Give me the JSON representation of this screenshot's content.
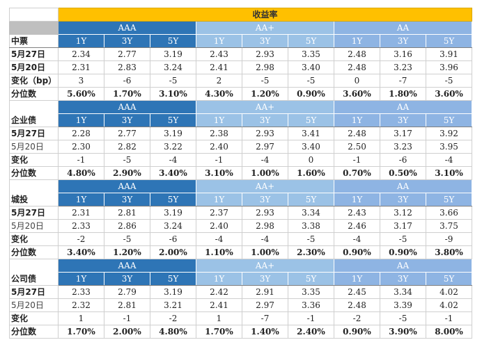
{
  "header": {
    "title": "收益率"
  },
  "grades": [
    "AAA",
    "AA+",
    "AA"
  ],
  "tenors": [
    "1Y",
    "3Y",
    "5Y"
  ],
  "colors": {
    "title_bg": "#ffc000",
    "aaa_bg": "#2e75b6",
    "aaplus_bg": "#9bc2e6",
    "aa_bg": "#8eb4e3"
  },
  "sections": [
    {
      "name": "中票",
      "rows": [
        {
          "label": "5月27日",
          "values": [
            "2.34",
            "2.77",
            "3.19",
            "2.43",
            "2.93",
            "3.35",
            "2.48",
            "3.16",
            "3.91"
          ]
        },
        {
          "label": "5月20日",
          "values": [
            "2.31",
            "2.83",
            "3.24",
            "2.41",
            "2.98",
            "3.40",
            "2.48",
            "3.23",
            "3.96"
          ]
        },
        {
          "label": "变化（bp）",
          "values": [
            "3",
            "-6",
            "-5",
            "2",
            "-5",
            "-5",
            "0",
            "-7",
            "-5"
          ]
        },
        {
          "label": "分位数",
          "values": [
            "5.60%",
            "1.70%",
            "3.10%",
            "4.30%",
            "1.20%",
            "0.90%",
            "3.60%",
            "1.80%",
            "3.60%"
          ]
        }
      ]
    },
    {
      "name": "企业债",
      "rows": [
        {
          "label": "5月27日",
          "values": [
            "2.28",
            "2.77",
            "3.19",
            "2.38",
            "2.93",
            "3.41",
            "2.48",
            "3.17",
            "3.92"
          ]
        },
        {
          "label": "5月20日",
          "values": [
            "2.30",
            "2.82",
            "3.22",
            "2.40",
            "2.97",
            "3.40",
            "2.50",
            "3.23",
            "3.95"
          ]
        },
        {
          "label": "变化",
          "values": [
            "-1",
            "-5",
            "-4",
            "-1",
            "-4",
            "0",
            "-1",
            "-6",
            "-4"
          ]
        },
        {
          "label": "分位数",
          "values": [
            "4.80%",
            "2.90%",
            "3.40%",
            "3.10%",
            "1.00%",
            "1.60%",
            "0.70%",
            "0.50%",
            "3.10%"
          ]
        }
      ]
    },
    {
      "name": "城投",
      "rows": [
        {
          "label": "5月27日",
          "values": [
            "2.31",
            "2.81",
            "3.19",
            "2.37",
            "2.93",
            "3.34",
            "2.43",
            "3.12",
            "3.66"
          ]
        },
        {
          "label": "5月20日",
          "values": [
            "2.33",
            "2.86",
            "3.24",
            "2.40",
            "2.98",
            "3.38",
            "2.46",
            "3.17",
            "3.75"
          ]
        },
        {
          "label": "变化",
          "values": [
            "-2",
            "-5",
            "-6",
            "-4",
            "-4",
            "-5",
            "-4",
            "-5",
            "-9"
          ]
        },
        {
          "label": "分位数",
          "values": [
            "3.40%",
            "1.20%",
            "2.00%",
            "1.10%",
            "1.00%",
            "2.30%",
            "0.90%",
            "0.90%",
            "3.80%"
          ]
        }
      ]
    },
    {
      "name": "公司债",
      "rows": [
        {
          "label": "5月27日",
          "values": [
            "2.33",
            "2.79",
            "3.19",
            "2.42",
            "2.91",
            "3.35",
            "2.45",
            "3.34",
            "4.02"
          ]
        },
        {
          "label": "5月20日",
          "values": [
            "2.32",
            "2.81",
            "3.21",
            "2.41",
            "2.97",
            "3.36",
            "2.48",
            "3.39",
            "4.02"
          ]
        },
        {
          "label": "变化",
          "values": [
            "1",
            "-1",
            "-2",
            "1",
            "-7",
            "-1",
            "-2",
            "-5",
            "-1"
          ]
        },
        {
          "label": "分位数",
          "values": [
            "1.70%",
            "2.00%",
            "4.80%",
            "1.70%",
            "1.40%",
            "2.40%",
            "0.90%",
            "3.90%",
            "8.00%"
          ]
        }
      ]
    }
  ]
}
